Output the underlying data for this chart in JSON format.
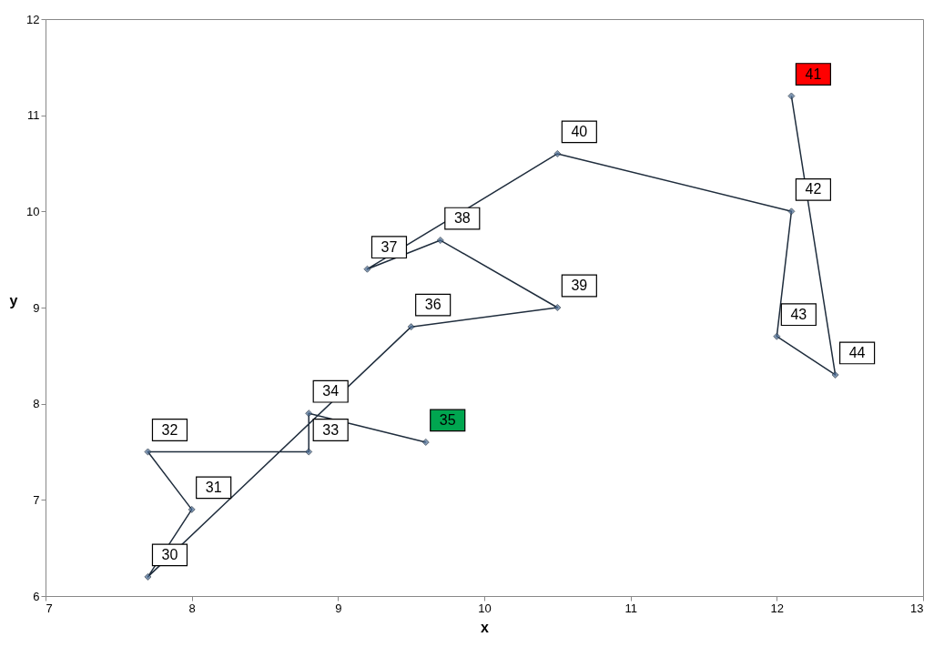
{
  "chart_data": {
    "type": "line",
    "xlabel": "x",
    "ylabel": "y",
    "x": [
      9.6,
      8.8,
      8.8,
      7.7,
      8.0,
      7.7,
      9.5,
      10.5,
      9.7,
      9.2,
      10.5,
      12.1,
      12.0,
      12.4,
      12.1
    ],
    "series": [
      {
        "color": "#1f2d3d",
        "values": [
          7.6,
          7.9,
          7.5,
          7.5,
          6.9,
          6.2,
          8.8,
          9.0,
          9.7,
          9.4,
          10.6,
          10.0,
          8.7,
          8.3,
          11.2
        ],
        "colors": [
          "#00a650",
          "#ffffff",
          "#ffffff",
          "#ffffff",
          "#ffffff",
          "#ffffff",
          "#ffffff",
          "#ffffff",
          "#ffffff",
          "#ffffff",
          "#ffffff",
          "#ffffff",
          "#ffffff",
          "#ffffff",
          "#ff0000"
        ]
      }
    ],
    "xlim": [
      7,
      13
    ],
    "xticks": [
      7,
      8,
      9,
      10,
      11,
      12,
      13
    ],
    "ylim": [
      6,
      12
    ],
    "yticks": [
      6,
      7,
      8,
      9,
      10,
      11,
      12
    ],
    "annotations": [
      {
        "text": "35",
        "x": 9.6,
        "y": 7.6
      },
      {
        "text": "34",
        "x": 8.8,
        "y": 7.9
      },
      {
        "text": "33",
        "x": 8.8,
        "y": 7.5
      },
      {
        "text": "32",
        "x": 7.7,
        "y": 7.5
      },
      {
        "text": "31",
        "x": 8.0,
        "y": 6.9
      },
      {
        "text": "30",
        "x": 7.7,
        "y": 6.2
      },
      {
        "text": "36",
        "x": 9.5,
        "y": 8.8
      },
      {
        "text": "39",
        "x": 10.5,
        "y": 9.0
      },
      {
        "text": "38",
        "x": 9.7,
        "y": 9.7
      },
      {
        "text": "37",
        "x": 9.2,
        "y": 9.4
      },
      {
        "text": "40",
        "x": 10.5,
        "y": 10.6
      },
      {
        "text": "42",
        "x": 12.1,
        "y": 10.0
      },
      {
        "text": "43",
        "x": 12.0,
        "y": 8.7
      },
      {
        "text": "44",
        "x": 12.4,
        "y": 8.3
      },
      {
        "text": "41",
        "x": 12.1,
        "y": 11.2
      }
    ],
    "marker": "diamond",
    "line_style": "solid",
    "grid": false
  }
}
